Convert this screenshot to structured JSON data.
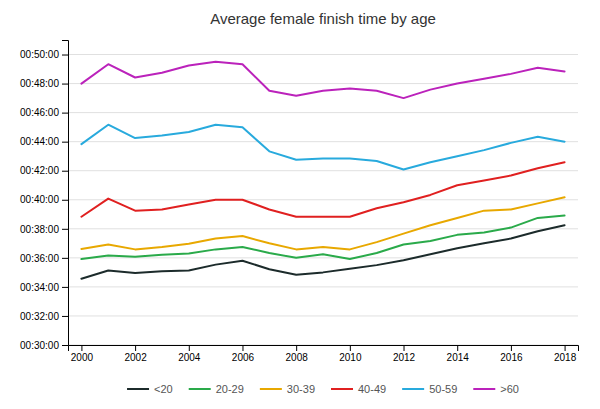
{
  "chart_data": {
    "type": "line",
    "title": "Average female finish time by age",
    "x": [
      2000,
      2001,
      2002,
      2003,
      2004,
      2005,
      2006,
      2007,
      2008,
      2009,
      2010,
      2011,
      2012,
      2013,
      2014,
      2015,
      2016,
      2017,
      2018
    ],
    "series": [
      {
        "name": "<20",
        "color": "#1c2b2b",
        "values": [
          2074,
          2108,
          2097,
          2105,
          2108,
          2132,
          2148,
          2113,
          2090,
          2100,
          2115,
          2130,
          2150,
          2175,
          2200,
          2220,
          2240,
          2270,
          2295
        ]
      },
      {
        "name": "20-29",
        "color": "#2aaa4a",
        "values": [
          2155,
          2170,
          2165,
          2173,
          2178,
          2195,
          2205,
          2180,
          2160,
          2175,
          2155,
          2180,
          2215,
          2230,
          2255,
          2265,
          2285,
          2325,
          2335
        ]
      },
      {
        "name": "30-39",
        "color": "#e8a800",
        "values": [
          2197,
          2215,
          2195,
          2205,
          2218,
          2240,
          2250,
          2220,
          2195,
          2205,
          2195,
          2225,
          2260,
          2295,
          2325,
          2355,
          2360,
          2385,
          2410
        ]
      },
      {
        "name": "40-49",
        "color": "#e02020",
        "values": [
          2330,
          2405,
          2355,
          2360,
          2380,
          2400,
          2400,
          2360,
          2330,
          2330,
          2330,
          2365,
          2390,
          2420,
          2460,
          2480,
          2500,
          2530,
          2555
        ]
      },
      {
        "name": "50-59",
        "color": "#28aadd",
        "values": [
          2630,
          2710,
          2655,
          2665,
          2680,
          2710,
          2700,
          2600,
          2565,
          2570,
          2570,
          2560,
          2525,
          2555,
          2580,
          2605,
          2635,
          2660,
          2640
        ]
      },
      {
        "name": ">60",
        "color": "#bb22bb",
        "values": [
          2880,
          2960,
          2905,
          2925,
          2955,
          2970,
          2960,
          2850,
          2830,
          2850,
          2860,
          2850,
          2820,
          2855,
          2880,
          2900,
          2920,
          2945,
          2930
        ]
      }
    ],
    "ylim": [
      1800,
      3060
    ],
    "yticks": [
      {
        "value": 1800,
        "label": "00:30:00"
      },
      {
        "value": 1920,
        "label": "00:32:00"
      },
      {
        "value": 2040,
        "label": "00:34:00"
      },
      {
        "value": 2160,
        "label": "00:36:00"
      },
      {
        "value": 2280,
        "label": "00:38:00"
      },
      {
        "value": 2400,
        "label": "00:40:00"
      },
      {
        "value": 2520,
        "label": "00:42:00"
      },
      {
        "value": 2640,
        "label": "00:44:00"
      },
      {
        "value": 2760,
        "label": "00:46:00"
      },
      {
        "value": 2880,
        "label": "00:48:00"
      },
      {
        "value": 3000,
        "label": "00:50:00"
      }
    ],
    "xlim": [
      1999.5,
      2018.5
    ],
    "xticks": [
      2000,
      2002,
      2004,
      2006,
      2008,
      2010,
      2012,
      2014,
      2016,
      2018
    ],
    "grid": true,
    "legend": "bottom"
  }
}
